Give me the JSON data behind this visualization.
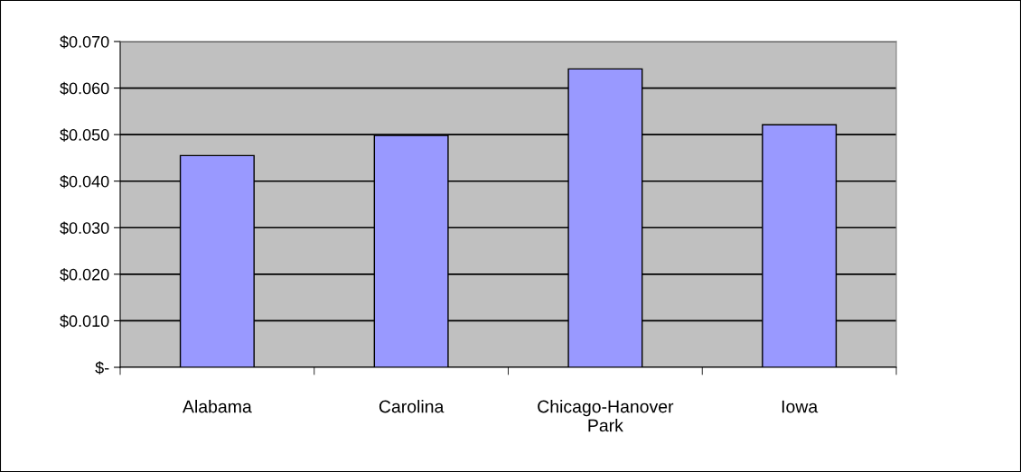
{
  "chart_data": {
    "type": "bar",
    "categories": [
      "Alabama",
      "Carolina",
      "Chicago-Hanover\nPark",
      "Iowa"
    ],
    "values": [
      0.0455,
      0.0498,
      0.0641,
      0.0521
    ],
    "color": "#9999ff",
    "ylim": [
      0,
      0.07
    ],
    "yticks": [
      {
        "value": 0,
        "label": "$-"
      },
      {
        "value": 0.01,
        "label": "$0.010"
      },
      {
        "value": 0.02,
        "label": "$0.020"
      },
      {
        "value": 0.03,
        "label": "$0.030"
      },
      {
        "value": 0.04,
        "label": "$0.040"
      },
      {
        "value": 0.05,
        "label": "$0.050"
      },
      {
        "value": 0.06,
        "label": "$0.060"
      },
      {
        "value": 0.07,
        "label": "$0.070"
      }
    ],
    "grid": "y"
  }
}
